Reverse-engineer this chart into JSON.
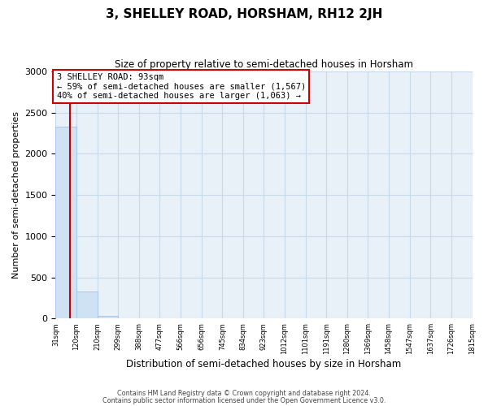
{
  "title": "3, SHELLEY ROAD, HORSHAM, RH12 2JH",
  "subtitle": "Size of property relative to semi-detached houses in Horsham",
  "xlabel": "Distribution of semi-detached houses by size in Horsham",
  "ylabel": "Number of semi-detached properties",
  "bin_edges": [
    31,
    120,
    210,
    299,
    388,
    477,
    566,
    656,
    745,
    834,
    923,
    1012,
    1101,
    1191,
    1280,
    1369,
    1458,
    1547,
    1637,
    1726,
    1815
  ],
  "bar_heights": [
    2330,
    330,
    30,
    8,
    5,
    4,
    3,
    2,
    2,
    1,
    1,
    1,
    1,
    1,
    0,
    0,
    0,
    0,
    0,
    0
  ],
  "bar_color": "#cfe2f3",
  "bar_edge_color": "#a8c8e8",
  "property_sqm": 93,
  "red_line_color": "#cc0000",
  "annotation_title": "3 SHELLEY ROAD: 93sqm",
  "annotation_line1": "← 59% of semi-detached houses are smaller (1,567)",
  "annotation_line2": "40% of semi-detached houses are larger (1,063) →",
  "annotation_box_edgecolor": "#cc0000",
  "ylim": [
    0,
    3000
  ],
  "yticks": [
    0,
    500,
    1000,
    1500,
    2000,
    2500,
    3000
  ],
  "footer1": "Contains HM Land Registry data © Crown copyright and database right 2024.",
  "footer2": "Contains public sector information licensed under the Open Government Licence v3.0.",
  "grid_color": "#c8daea",
  "plot_bgcolor": "#e8f0f8"
}
